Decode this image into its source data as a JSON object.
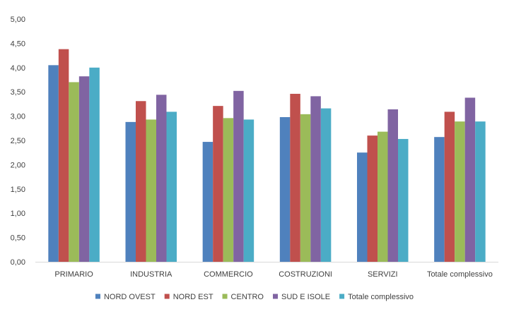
{
  "chart_data": {
    "type": "bar",
    "categories": [
      "PRIMARIO",
      "INDUSTRIA",
      "COMMERCIO",
      "COSTRUZIONI",
      "SERVIZI",
      "Totale complessivo"
    ],
    "series": [
      {
        "name": "NORD OVEST",
        "color": "#4F81BD",
        "values": [
          4.05,
          2.88,
          2.47,
          2.98,
          2.25,
          2.57
        ]
      },
      {
        "name": "NORD EST",
        "color": "#C0504D",
        "values": [
          4.38,
          3.31,
          3.21,
          3.46,
          2.6,
          3.09
        ]
      },
      {
        "name": "CENTRO",
        "color": "#9BBB59",
        "values": [
          3.7,
          2.93,
          2.96,
          3.04,
          2.68,
          2.89
        ]
      },
      {
        "name": "SUD E ISOLE",
        "color": "#8064A2",
        "values": [
          3.82,
          3.44,
          3.52,
          3.41,
          3.14,
          3.38
        ]
      },
      {
        "name": "Totale complessivo",
        "color": "#4BACC6",
        "values": [
          4.0,
          3.09,
          2.93,
          3.16,
          2.53,
          2.89
        ]
      }
    ],
    "yticks": [
      "0,00",
      "0,50",
      "1,00",
      "1,50",
      "2,00",
      "2,50",
      "3,00",
      "3,50",
      "4,00",
      "4,50",
      "5,00"
    ],
    "ylim": [
      0,
      5
    ],
    "grid": false,
    "legend": "bottom",
    "title": "",
    "xlabel": "",
    "ylabel": ""
  }
}
